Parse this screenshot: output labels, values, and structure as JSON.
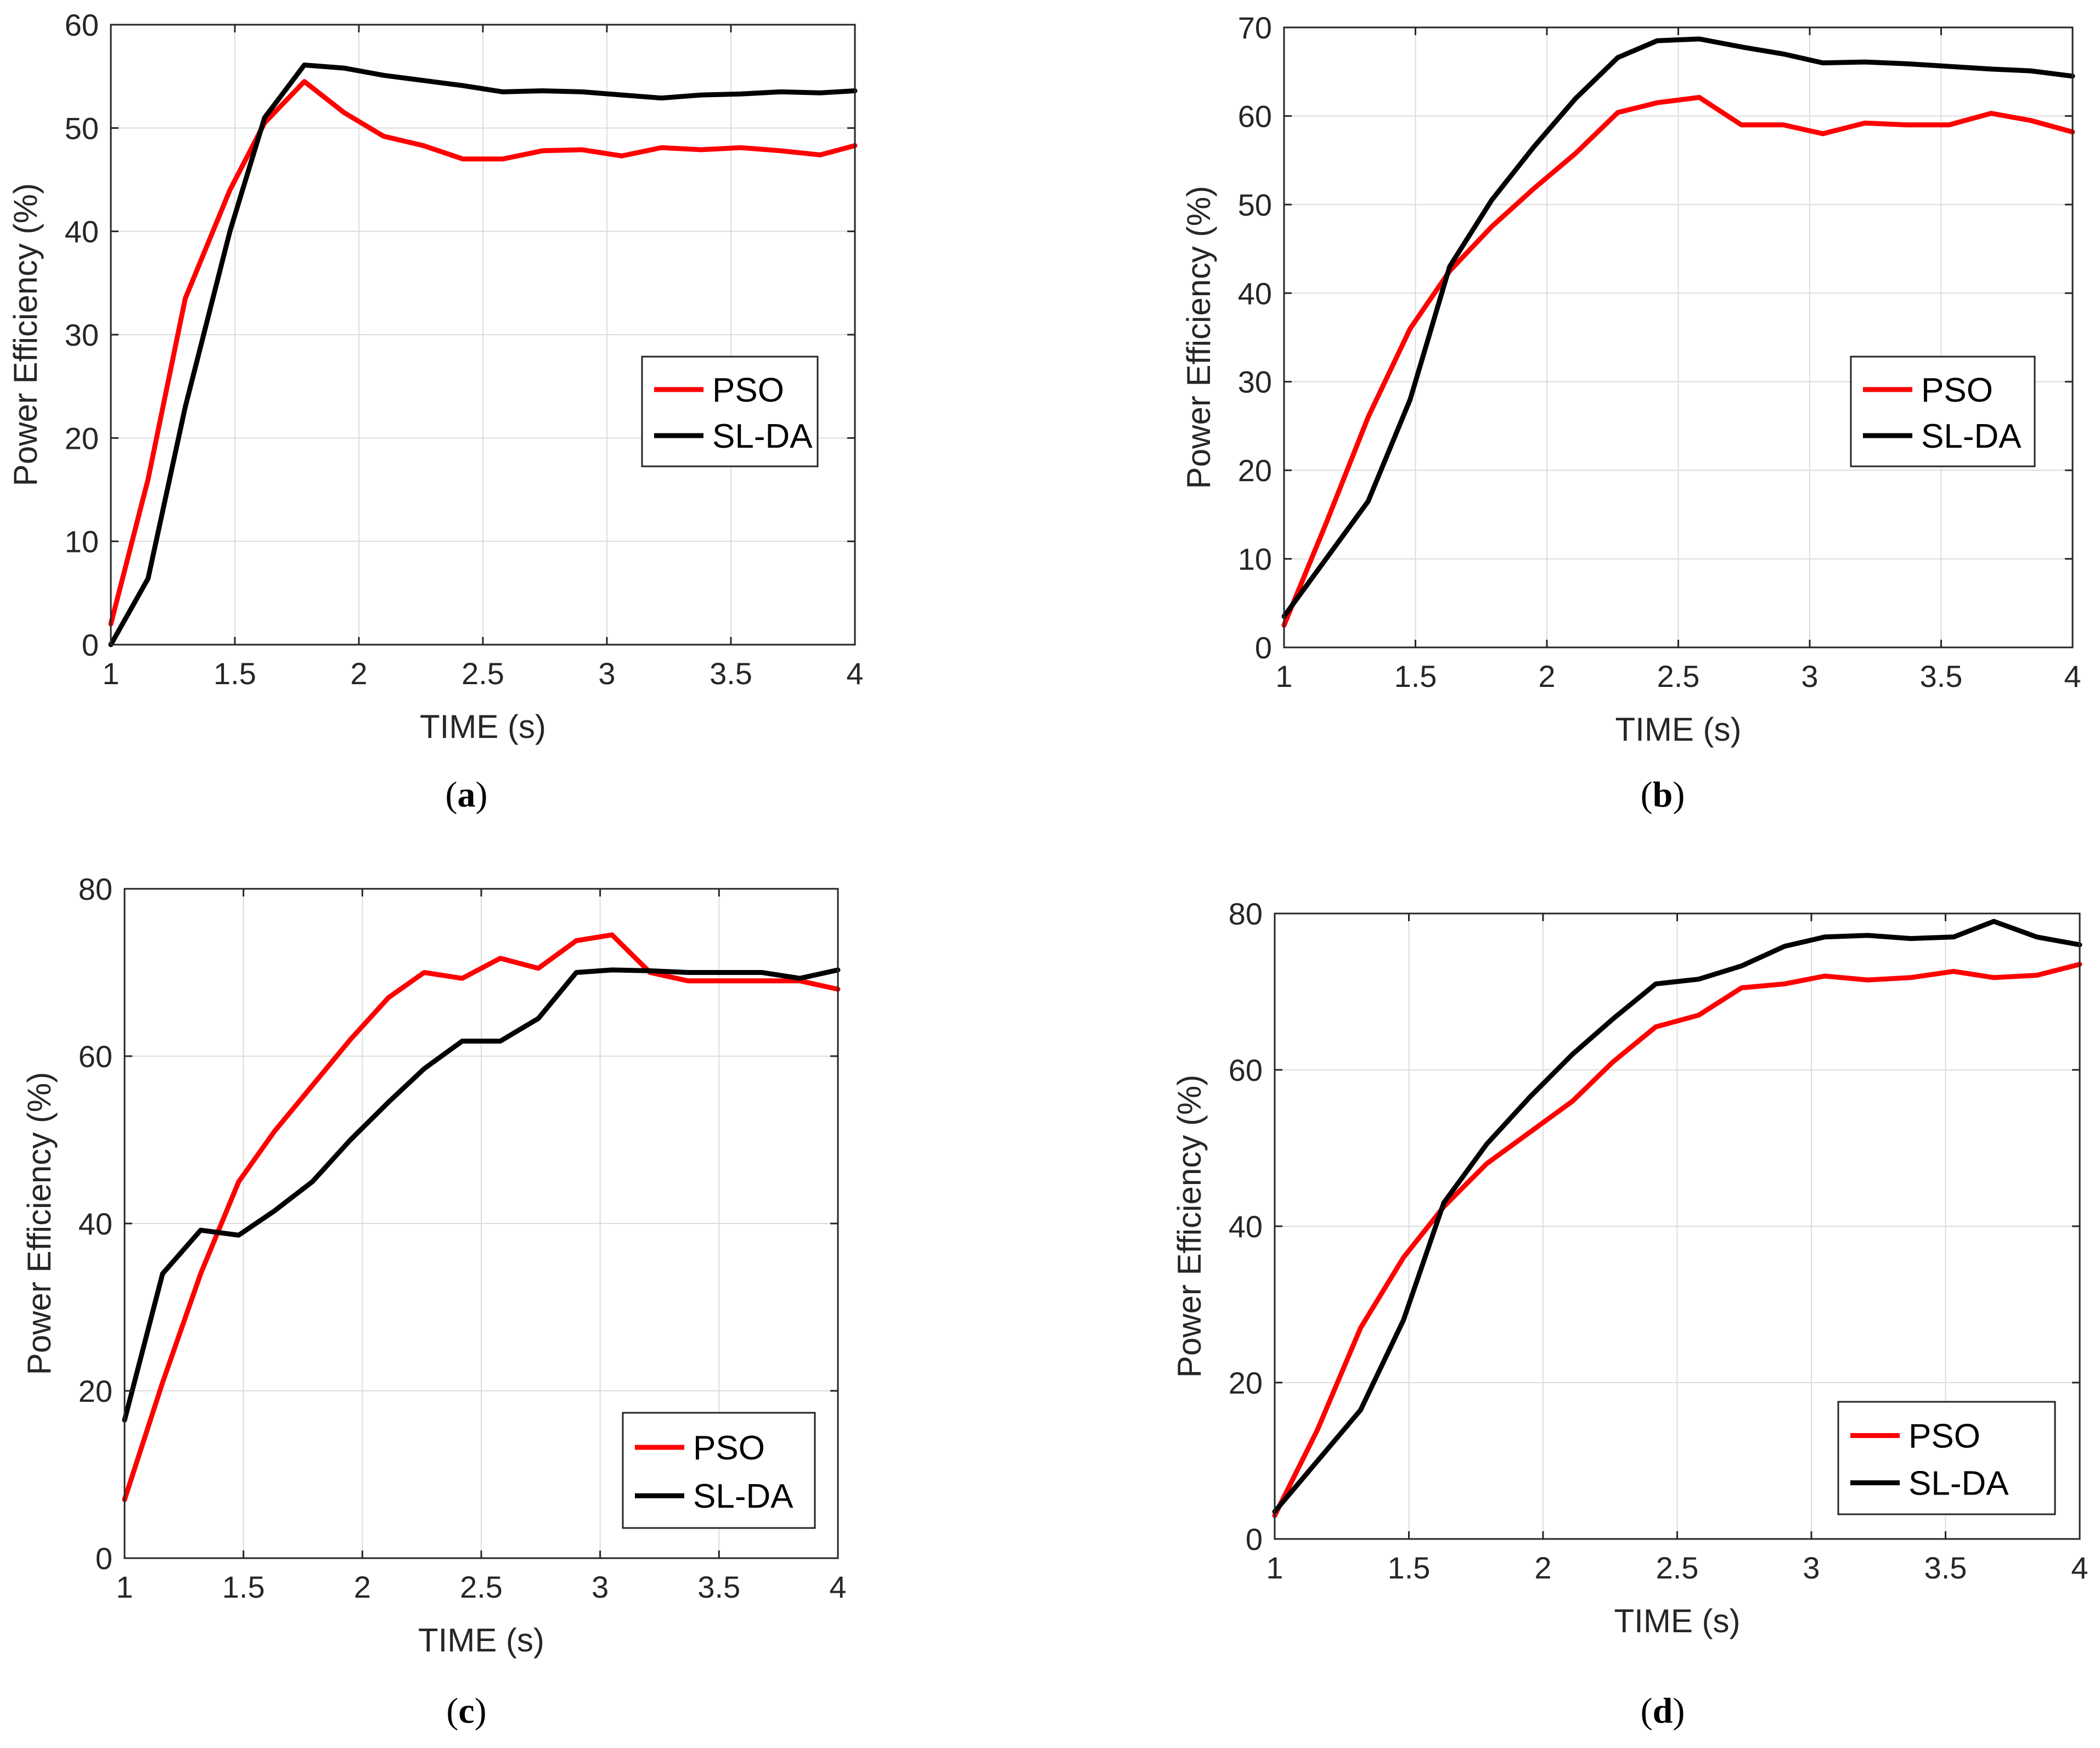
{
  "colors": {
    "pso": "#ff0000",
    "slda": "#000000"
  },
  "chart_data": [
    {
      "type": "line",
      "panel": "a",
      "caption": "a",
      "xlabel": "TIME (s)",
      "ylabel": "Power Efficiency (%)",
      "xlim": [
        1,
        4
      ],
      "ylim": [
        0,
        60
      ],
      "xticks": [
        1,
        1.5,
        2,
        2.5,
        3,
        3.5,
        4
      ],
      "xtick_labels": [
        "1",
        "1.5",
        "2",
        "2.5",
        "3",
        "3.5",
        "4"
      ],
      "yticks": [
        0,
        10,
        20,
        30,
        40,
        50,
        60
      ],
      "ytick_labels": [
        "0",
        "10",
        "20",
        "30",
        "40",
        "50",
        "60"
      ],
      "grid": true,
      "legend_position": "right",
      "series": [
        {
          "name": "PSO",
          "x": [
            1,
            1.15,
            1.3,
            1.48,
            1.62,
            1.78,
            1.94,
            2.1,
            2.26,
            2.42,
            2.58,
            2.74,
            2.9,
            3.06,
            3.22,
            3.38,
            3.54,
            3.7,
            3.86,
            4
          ],
          "y": [
            2,
            16,
            33.5,
            44,
            50.5,
            54.5,
            51.5,
            49.2,
            48.3,
            47,
            47,
            47.8,
            47.9,
            47.3,
            48.1,
            47.9,
            48.1,
            47.8,
            47.4,
            48.3
          ]
        },
        {
          "name": "SL-DA",
          "x": [
            1,
            1.15,
            1.3,
            1.48,
            1.62,
            1.78,
            1.94,
            2.1,
            2.26,
            2.42,
            2.58,
            2.74,
            2.9,
            3.06,
            3.22,
            3.38,
            3.54,
            3.7,
            3.86,
            4
          ],
          "y": [
            0,
            6.4,
            23,
            40,
            51,
            56.1,
            55.8,
            55.1,
            54.6,
            54.1,
            53.5,
            53.6,
            53.5,
            53.2,
            52.9,
            53.2,
            53.3,
            53.5,
            53.4,
            53.6
          ]
        }
      ]
    },
    {
      "type": "line",
      "panel": "b",
      "caption": "b",
      "xlabel": "TIME (s)",
      "ylabel": "Power Efficiency (%)",
      "xlim": [
        1,
        4
      ],
      "ylim": [
        0,
        70
      ],
      "xticks": [
        1,
        1.5,
        2,
        2.5,
        3,
        3.5,
        4
      ],
      "xtick_labels": [
        "1",
        "1.5",
        "2",
        "2.5",
        "3",
        "3.5",
        "4"
      ],
      "yticks": [
        0,
        10,
        20,
        30,
        40,
        50,
        60,
        70
      ],
      "ytick_labels": [
        "0",
        "10",
        "20",
        "30",
        "40",
        "50",
        "60",
        "70"
      ],
      "grid": true,
      "legend_position": "right",
      "series": [
        {
          "name": "PSO",
          "x": [
            1,
            1.16,
            1.32,
            1.48,
            1.63,
            1.79,
            1.95,
            2.11,
            2.27,
            2.42,
            2.58,
            2.74,
            2.9,
            3.05,
            3.21,
            3.37,
            3.53,
            3.69,
            3.84,
            4
          ],
          "y": [
            2.5,
            14,
            26,
            36,
            42.5,
            47.5,
            51.8,
            55.8,
            60.4,
            61.5,
            62.1,
            59,
            59,
            58,
            59.2,
            59,
            59,
            60.3,
            59.5,
            58.2
          ]
        },
        {
          "name": "SL-DA",
          "x": [
            1,
            1.16,
            1.32,
            1.48,
            1.63,
            1.79,
            1.95,
            2.11,
            2.27,
            2.42,
            2.58,
            2.74,
            2.9,
            3.05,
            3.21,
            3.37,
            3.53,
            3.69,
            3.84,
            4
          ],
          "y": [
            3.5,
            10,
            16.5,
            28,
            43,
            50.5,
            56.5,
            62,
            66.6,
            68.5,
            68.7,
            67.8,
            67,
            66,
            66.1,
            65.9,
            65.6,
            65.3,
            65.1,
            64.5
          ]
        }
      ]
    },
    {
      "type": "line",
      "panel": "c",
      "caption": "c",
      "xlabel": "TIME (s)",
      "ylabel": "Power Efficiency (%)",
      "xlim": [
        1,
        4
      ],
      "ylim": [
        0,
        80
      ],
      "xticks": [
        1,
        1.5,
        2,
        2.5,
        3,
        3.5,
        4
      ],
      "xtick_labels": [
        "1",
        "1.5",
        "2",
        "2.5",
        "3",
        "3.5",
        "4"
      ],
      "yticks": [
        0,
        20,
        40,
        60,
        80
      ],
      "ytick_labels": [
        "0",
        "20",
        "40",
        "60",
        "80"
      ],
      "grid": true,
      "legend_position": "bottom-right",
      "series": [
        {
          "name": "PSO",
          "x": [
            1,
            1.16,
            1.32,
            1.48,
            1.63,
            1.79,
            1.95,
            2.11,
            2.26,
            2.42,
            2.58,
            2.74,
            2.9,
            3.05,
            3.21,
            3.37,
            3.53,
            3.68,
            3.84,
            4
          ],
          "y": [
            7,
            21,
            34,
            45,
            51,
            56.5,
            62,
            67,
            70,
            69.3,
            71.7,
            70.5,
            73.8,
            74.5,
            70,
            69,
            69,
            69,
            69,
            68
          ]
        },
        {
          "name": "SL-DA",
          "x": [
            1,
            1.16,
            1.32,
            1.48,
            1.63,
            1.79,
            1.95,
            2.11,
            2.26,
            2.42,
            2.58,
            2.74,
            2.9,
            3.05,
            3.21,
            3.37,
            3.53,
            3.68,
            3.84,
            4
          ],
          "y": [
            16.5,
            34,
            39.2,
            38.6,
            41.5,
            45,
            50,
            54.5,
            58.5,
            61.8,
            61.8,
            64.5,
            70,
            70.3,
            70.2,
            70,
            70,
            70,
            69.3,
            70.3
          ]
        }
      ]
    },
    {
      "type": "line",
      "panel": "d",
      "caption": "d",
      "xlabel": "TIME (s)",
      "ylabel": "Power Efficiency (%)",
      "xlim": [
        1,
        4
      ],
      "ylim": [
        0,
        80
      ],
      "xticks": [
        1,
        1.5,
        2,
        2.5,
        3,
        3.5,
        4
      ],
      "xtick_labels": [
        "1",
        "1.5",
        "2",
        "2.5",
        "3",
        "3.5",
        "4"
      ],
      "yticks": [
        0,
        20,
        40,
        60,
        80
      ],
      "ytick_labels": [
        "0",
        "20",
        "40",
        "60",
        "80"
      ],
      "grid": true,
      "legend_position": "bottom-right",
      "series": [
        {
          "name": "PSO",
          "x": [
            1,
            1.16,
            1.32,
            1.48,
            1.63,
            1.79,
            1.95,
            2.11,
            2.26,
            2.42,
            2.58,
            2.74,
            2.9,
            3.05,
            3.21,
            3.37,
            3.53,
            3.68,
            3.84,
            4
          ],
          "y": [
            3,
            14,
            27,
            36,
            42.5,
            48,
            52,
            56,
            61,
            65.5,
            67,
            70.5,
            71,
            72,
            71.5,
            71.8,
            72.6,
            71.8,
            72.1,
            73.5
          ]
        },
        {
          "name": "SL-DA",
          "x": [
            1,
            1.16,
            1.32,
            1.48,
            1.63,
            1.79,
            1.95,
            2.11,
            2.26,
            2.42,
            2.58,
            2.74,
            2.9,
            3.05,
            3.21,
            3.37,
            3.53,
            3.68,
            3.84,
            4
          ],
          "y": [
            3.5,
            10,
            16.5,
            28,
            43,
            50.5,
            56.5,
            62,
            66.5,
            71,
            71.6,
            73.3,
            75.8,
            77,
            77.2,
            76.8,
            77,
            79,
            77,
            76
          ]
        }
      ]
    }
  ]
}
